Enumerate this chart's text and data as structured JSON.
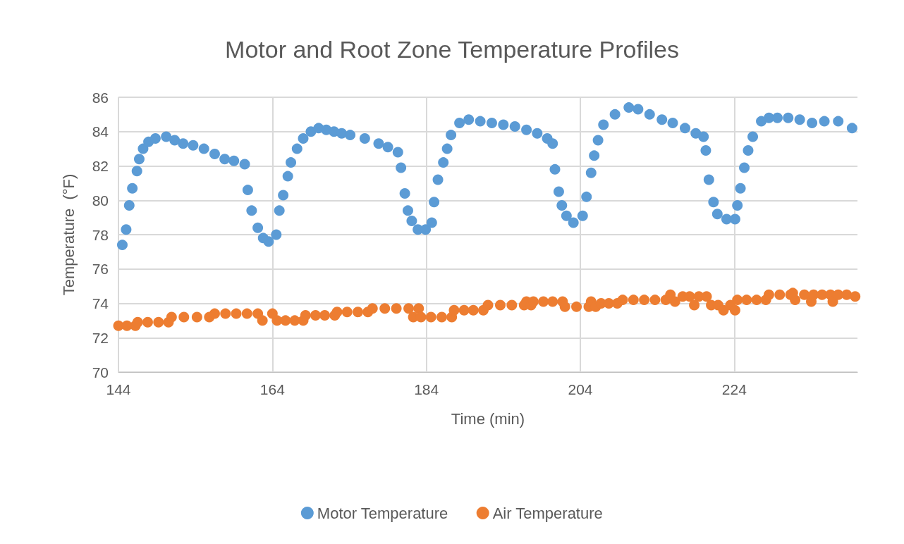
{
  "chart_data": {
    "type": "scatter",
    "title": "Motor and Root Zone Temperature Profiles",
    "xlabel": "Time (min)",
    "ylabel": "Temperature  (°F)",
    "xlim": [
      144,
      240
    ],
    "xticks": [
      144,
      164,
      184,
      204,
      224
    ],
    "ylim": [
      70,
      86
    ],
    "yticks": [
      70,
      72,
      74,
      76,
      78,
      80,
      82,
      84,
      86
    ],
    "grid": true,
    "legend": "bottom",
    "marker": "circle",
    "series": [
      {
        "name": "Motor Temperature",
        "color": "#5b9bd5",
        "x": [
          144.5,
          145.0,
          145.4,
          145.8,
          146.4,
          146.7,
          147.2,
          147.9,
          148.8,
          150.2,
          151.3,
          152.4,
          153.7,
          155.1,
          156.5,
          157.8,
          159.0,
          160.4,
          160.8,
          161.3,
          162.1,
          162.8,
          163.5,
          164.5,
          164.9,
          165.4,
          166.0,
          166.4,
          167.2,
          168.0,
          169.0,
          170.0,
          171.0,
          172.0,
          173.0,
          174.1,
          176.0,
          177.8,
          179.0,
          180.3,
          180.7,
          181.2,
          181.6,
          182.1,
          182.9,
          183.9,
          184.7,
          185.0,
          185.5,
          186.2,
          186.7,
          187.2,
          188.3,
          189.5,
          191.0,
          192.5,
          194.0,
          195.5,
          197.0,
          198.4,
          199.7,
          200.4,
          200.7,
          201.2,
          201.6,
          202.2,
          203.1,
          204.3,
          204.8,
          205.4,
          205.8,
          206.3,
          207.0,
          208.5,
          210.3,
          211.5,
          213.0,
          214.6,
          216.0,
          217.6,
          219.0,
          220.0,
          220.3,
          220.7,
          221.3,
          221.8,
          223.0,
          224.1,
          224.4,
          224.8,
          225.3,
          225.8,
          226.4,
          227.5,
          228.5,
          229.6,
          231.0,
          232.5,
          234.1,
          235.7,
          237.5,
          239.3
        ],
        "values": [
          77.4,
          78.3,
          79.7,
          80.7,
          81.7,
          82.4,
          83.0,
          83.4,
          83.6,
          83.7,
          83.5,
          83.3,
          83.2,
          83.0,
          82.7,
          82.4,
          82.3,
          82.1,
          80.6,
          79.4,
          78.4,
          77.8,
          77.6,
          78.0,
          79.4,
          80.3,
          81.4,
          82.2,
          83.0,
          83.6,
          84.0,
          84.2,
          84.1,
          84.0,
          83.9,
          83.8,
          83.6,
          83.3,
          83.1,
          82.8,
          81.9,
          80.4,
          79.4,
          78.8,
          78.3,
          78.3,
          78.7,
          79.9,
          81.2,
          82.2,
          83.0,
          83.8,
          84.5,
          84.7,
          84.6,
          84.5,
          84.4,
          84.3,
          84.1,
          83.9,
          83.6,
          83.3,
          81.8,
          80.5,
          79.7,
          79.1,
          78.7,
          79.1,
          80.2,
          81.6,
          82.6,
          83.5,
          84.4,
          85.0,
          85.4,
          85.3,
          85.0,
          84.7,
          84.5,
          84.2,
          83.9,
          83.7,
          82.9,
          81.2,
          79.9,
          79.2,
          78.9,
          78.9,
          79.7,
          80.7,
          81.9,
          82.9,
          83.7,
          84.6,
          84.8,
          84.8,
          84.8,
          84.7,
          84.5,
          84.6,
          84.6,
          84.2
        ]
      },
      {
        "name": "Air Temperature",
        "color": "#ed7d31",
        "x": [
          144.0,
          145.1,
          146.2,
          146.5,
          147.8,
          149.2,
          150.5,
          150.9,
          152.5,
          154.2,
          155.8,
          156.5,
          157.9,
          159.3,
          160.7,
          162.1,
          162.7,
          164.0,
          164.6,
          165.7,
          166.9,
          168.0,
          168.3,
          169.6,
          170.8,
          172.1,
          172.4,
          173.7,
          175.1,
          176.4,
          177.0,
          178.6,
          180.1,
          181.7,
          182.3,
          183.0,
          183.3,
          184.6,
          186.0,
          187.3,
          187.6,
          188.9,
          190.1,
          191.4,
          192.0,
          193.6,
          195.1,
          196.7,
          197.0,
          197.6,
          197.9,
          199.2,
          200.4,
          201.7,
          202.0,
          203.5,
          205.1,
          205.4,
          206.0,
          206.7,
          207.7,
          208.8,
          209.5,
          210.9,
          212.3,
          213.7,
          215.1,
          215.7,
          216.3,
          217.3,
          218.2,
          218.8,
          219.4,
          220.4,
          221.0,
          221.9,
          222.6,
          223.5,
          224.1,
          224.4,
          225.6,
          226.9,
          228.1,
          228.5,
          229.9,
          231.3,
          231.6,
          231.9,
          233.1,
          234.0,
          234.3,
          235.4,
          236.5,
          236.8,
          237.5,
          238.6,
          239.7
        ],
        "values": [
          72.7,
          72.7,
          72.7,
          72.9,
          72.9,
          72.9,
          72.9,
          73.2,
          73.2,
          73.2,
          73.2,
          73.4,
          73.4,
          73.4,
          73.4,
          73.4,
          73.0,
          73.4,
          73.0,
          73.0,
          73.0,
          73.0,
          73.3,
          73.3,
          73.3,
          73.3,
          73.5,
          73.5,
          73.5,
          73.5,
          73.7,
          73.7,
          73.7,
          73.7,
          73.2,
          73.7,
          73.2,
          73.2,
          73.2,
          73.2,
          73.6,
          73.6,
          73.6,
          73.6,
          73.9,
          73.9,
          73.9,
          73.9,
          74.1,
          73.9,
          74.1,
          74.1,
          74.1,
          74.1,
          73.8,
          73.8,
          73.8,
          74.1,
          73.8,
          74.0,
          74.0,
          74.0,
          74.2,
          74.2,
          74.2,
          74.2,
          74.2,
          74.5,
          74.1,
          74.4,
          74.4,
          73.9,
          74.4,
          74.4,
          73.9,
          73.9,
          73.6,
          73.9,
          73.6,
          74.2,
          74.2,
          74.2,
          74.2,
          74.5,
          74.5,
          74.5,
          74.6,
          74.2,
          74.5,
          74.1,
          74.5,
          74.5,
          74.5,
          74.1,
          74.5,
          74.5,
          74.4
        ]
      }
    ]
  }
}
